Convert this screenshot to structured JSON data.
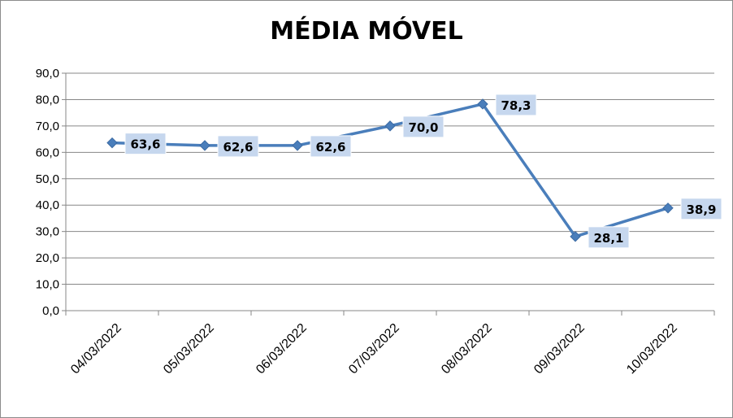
{
  "chart_data": {
    "type": "line",
    "title": "MÉDIA MÓVEL",
    "categories": [
      "04/03/2022",
      "05/03/2022",
      "06/03/2022",
      "07/03/2022",
      "08/03/2022",
      "09/03/2022",
      "10/03/2022"
    ],
    "values": [
      63.6,
      62.6,
      62.6,
      70.0,
      78.3,
      28.1,
      38.9
    ],
    "data_labels": [
      "63,6",
      "62,6",
      "62,6",
      "70,0",
      "78,3",
      "28,1",
      "38,9"
    ],
    "y_ticks": [
      "0,0",
      "10,0",
      "20,0",
      "30,0",
      "40,0",
      "50,0",
      "60,0",
      "70,0",
      "80,0",
      "90,0"
    ],
    "ylim": [
      0,
      90
    ],
    "grid": true,
    "line_color": "#4a7ebb",
    "label_bg_color": "#c6d7ee"
  }
}
